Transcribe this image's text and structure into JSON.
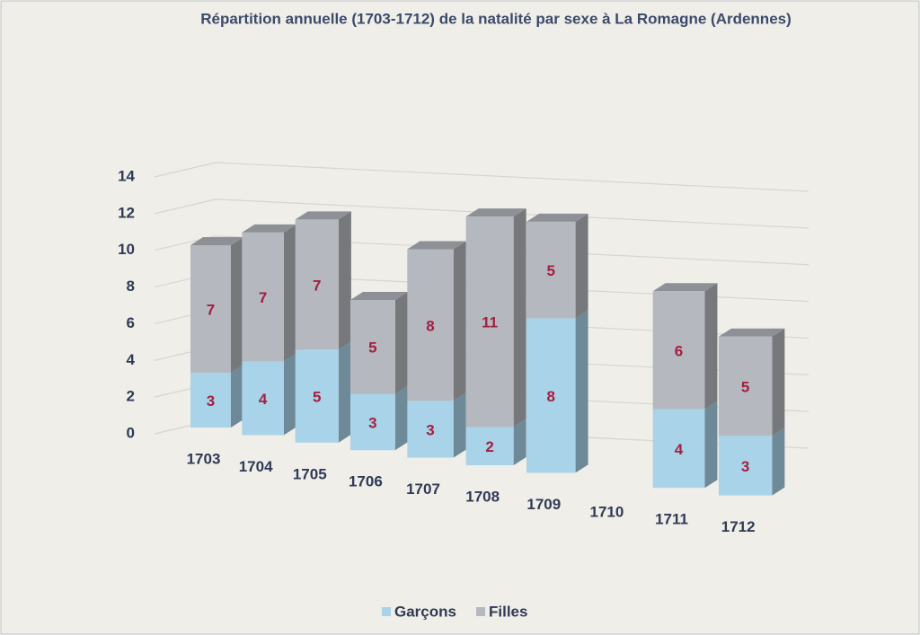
{
  "chart_data": {
    "type": "bar3d_stacked",
    "title": "Répartition annuelle (1703-1712) de la natalité par sexe à La Romagne (Ardennes)",
    "categories": [
      "1703",
      "1704",
      "1705",
      "1706",
      "1707",
      "1708",
      "1709",
      "1710",
      "1711",
      "1712"
    ],
    "series": [
      {
        "name": "Garçons",
        "color": "#a9d3e8",
        "values": [
          3,
          4,
          5,
          3,
          3,
          2,
          8,
          null,
          4,
          3
        ]
      },
      {
        "name": "Filles",
        "color": "#b5b8bf",
        "values": [
          7,
          7,
          7,
          5,
          8,
          11,
          5,
          null,
          6,
          5
        ]
      }
    ],
    "ylim": [
      0,
      14
    ],
    "yticks": [
      0,
      2,
      4,
      6,
      8,
      10,
      12,
      14
    ],
    "grid": true,
    "legend": "bottom",
    "value_label_color": "#a3203f"
  }
}
